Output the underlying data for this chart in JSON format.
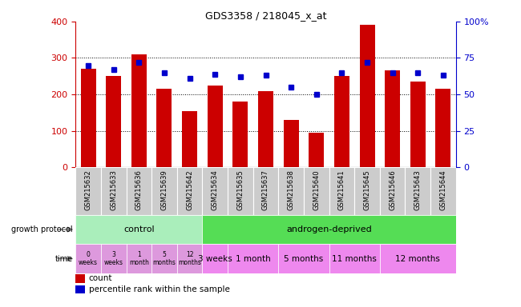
{
  "title": "GDS3358 / 218045_x_at",
  "samples": [
    "GSM215632",
    "GSM215633",
    "GSM215636",
    "GSM215639",
    "GSM215642",
    "GSM215634",
    "GSM215635",
    "GSM215637",
    "GSM215638",
    "GSM215640",
    "GSM215641",
    "GSM215645",
    "GSM215646",
    "GSM215643",
    "GSM215644"
  ],
  "counts": [
    270,
    250,
    310,
    215,
    155,
    225,
    180,
    210,
    130,
    95,
    250,
    390,
    265,
    235,
    215
  ],
  "percentiles": [
    70,
    67,
    72,
    65,
    61,
    64,
    62,
    63,
    55,
    50,
    65,
    72,
    65,
    65,
    63
  ],
  "bar_color": "#cc0000",
  "dot_color": "#0000cc",
  "ylim_left": [
    0,
    400
  ],
  "ylim_right": [
    0,
    100
  ],
  "yticks_left": [
    0,
    100,
    200,
    300,
    400
  ],
  "yticks_right": [
    0,
    25,
    50,
    75,
    100
  ],
  "ytick_labels_right": [
    "0",
    "25",
    "50",
    "75",
    "100%"
  ],
  "control_color": "#aaeebb",
  "androgen_color": "#55dd55",
  "time_color_ctrl": "#dd99dd",
  "time_color_androgen": "#ee88ee",
  "sample_box_color": "#cccccc",
  "time_labels_control": [
    "0\nweeks",
    "3\nweeks",
    "1\nmonth",
    "5\nmonths",
    "12\nmonths"
  ],
  "time_labels_androgen": [
    "3 weeks",
    "1 month",
    "5 months",
    "11 months",
    "12 months"
  ],
  "time_groups_androgen_start": [
    5,
    6,
    8,
    10,
    12
  ],
  "time_groups_androgen_end": [
    6,
    8,
    10,
    12,
    15
  ],
  "label_left_color": "#cc0000",
  "label_right_color": "#0000cc"
}
